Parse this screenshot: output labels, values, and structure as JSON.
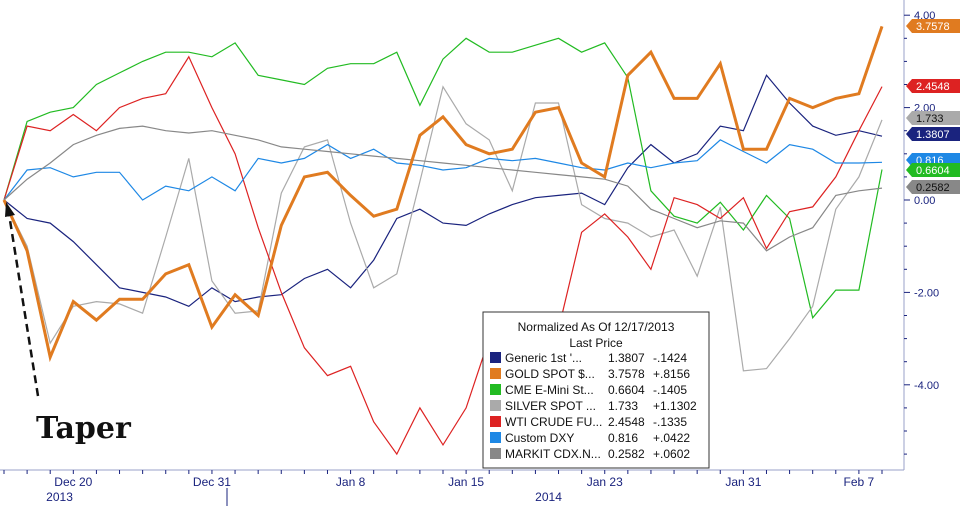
{
  "chart_data": {
    "type": "line",
    "ylim": [
      -5.6,
      4.0
    ],
    "y_ticks": [
      {
        "value": 4.0,
        "label": "4.00"
      },
      {
        "value": 2.0,
        "label": "2.00"
      },
      {
        "value": 0.0,
        "label": "0.00"
      },
      {
        "value": -2.0,
        "label": "-2.00"
      },
      {
        "value": -4.0,
        "label": "-4.00"
      }
    ],
    "x_ticks": [
      {
        "index": 3,
        "label": "Dec 20"
      },
      {
        "index": 9,
        "label": "Dec 31"
      },
      {
        "index": 15,
        "label": "Jan 8"
      },
      {
        "index": 20,
        "label": "Jan 15"
      },
      {
        "index": 26,
        "label": "Jan 23"
      },
      {
        "index": 32,
        "label": "Jan 31"
      },
      {
        "index": 37,
        "label": "Feb 7"
      }
    ],
    "year_labels": [
      {
        "index": 5,
        "label": "2013"
      },
      {
        "index": 24,
        "label": "2014"
      }
    ],
    "grid": false,
    "series": [
      {
        "name": "Generic 1st '...",
        "color": "#1a237e",
        "width": 1.2,
        "values": [
          0.0,
          -0.4,
          -0.5,
          -0.9,
          -1.4,
          -1.9,
          -2.0,
          -2.1,
          -2.3,
          -1.9,
          -2.2,
          -2.1,
          -2.05,
          -1.7,
          -1.5,
          -1.9,
          -1.3,
          -0.4,
          -0.2,
          -0.5,
          -0.55,
          -0.3,
          -0.1,
          0.05,
          0.1,
          0.15,
          -0.1,
          0.7,
          1.2,
          0.8,
          1.0,
          1.6,
          1.5,
          2.7,
          2.1,
          1.6,
          1.4,
          1.5,
          1.3807
        ]
      },
      {
        "name": "GOLD SPOT $...",
        "color": "#e07b20",
        "width": 3,
        "values": [
          0.0,
          -1.1,
          -3.4,
          -2.2,
          -2.6,
          -2.15,
          -2.15,
          -1.6,
          -1.4,
          -2.75,
          -2.05,
          -2.5,
          -0.55,
          0.5,
          0.6,
          0.1,
          -0.35,
          -0.2,
          1.4,
          1.8,
          1.2,
          1.0,
          1.1,
          1.9,
          2.0,
          0.8,
          0.5,
          2.7,
          3.2,
          2.2,
          2.2,
          2.95,
          1.1,
          1.1,
          2.2,
          2.0,
          2.2,
          2.3,
          3.7578
        ]
      },
      {
        "name": "CME E-Mini St...",
        "color": "#22bb22",
        "width": 1.2,
        "values": [
          0.0,
          1.7,
          1.9,
          2.0,
          2.5,
          2.75,
          3.0,
          3.2,
          3.2,
          3.1,
          3.4,
          2.7,
          2.6,
          2.5,
          2.85,
          2.95,
          2.95,
          3.2,
          2.05,
          3.05,
          3.5,
          3.2,
          3.2,
          3.35,
          3.5,
          3.2,
          3.4,
          2.65,
          0.2,
          -0.35,
          -0.5,
          -0.05,
          -0.65,
          0.1,
          -0.4,
          -2.55,
          -1.95,
          -1.95,
          0.6604
        ]
      },
      {
        "name": "SILVER SPOT ...",
        "color": "#aaaaaa",
        "width": 1.2,
        "values": [
          0.0,
          -1.0,
          -3.1,
          -2.3,
          -2.2,
          -2.25,
          -2.45,
          -0.8,
          0.9,
          -1.75,
          -2.45,
          -2.4,
          0.15,
          1.15,
          1.3,
          -0.5,
          -1.9,
          -1.6,
          0.4,
          2.45,
          1.65,
          1.3,
          0.2,
          2.1,
          2.1,
          -0.1,
          -0.4,
          -0.5,
          -0.8,
          -0.65,
          -1.65,
          -0.15,
          -3.7,
          -3.65,
          -3.0,
          -2.3,
          -0.2,
          0.5,
          1.733
        ]
      },
      {
        "name": "WTI CRUDE FU...",
        "color": "#dd2222",
        "width": 1.2,
        "values": [
          0.0,
          1.6,
          1.5,
          1.85,
          1.5,
          2.0,
          2.2,
          2.3,
          3.1,
          2.0,
          1.0,
          -0.6,
          -2.0,
          -3.2,
          -3.8,
          -3.6,
          -4.8,
          -5.5,
          -4.5,
          -5.3,
          -4.5,
          -3.0,
          -3.7,
          -3.3,
          -2.8,
          -0.7,
          -0.3,
          -0.8,
          -1.5,
          0.05,
          -0.1,
          -0.4,
          0.05,
          -1.05,
          -0.25,
          -0.15,
          0.5,
          1.5,
          2.4548
        ]
      },
      {
        "name": "Custom DXY",
        "color": "#1e88e5",
        "width": 1.2,
        "values": [
          0.0,
          0.65,
          0.7,
          0.5,
          0.6,
          0.6,
          0.0,
          0.3,
          0.2,
          0.5,
          0.2,
          0.9,
          0.8,
          0.9,
          1.2,
          0.9,
          1.1,
          0.8,
          0.75,
          0.65,
          0.7,
          0.9,
          0.85,
          0.9,
          0.8,
          0.7,
          0.65,
          0.8,
          0.7,
          0.8,
          0.85,
          1.3,
          1.05,
          0.8,
          1.2,
          1.1,
          0.8,
          0.8,
          0.816
        ]
      },
      {
        "name": "MARKIT CDX.N...",
        "color": "#888888",
        "width": 1.2,
        "values": [
          0.0,
          0.45,
          0.8,
          1.2,
          1.4,
          1.55,
          1.6,
          1.5,
          1.45,
          1.5,
          1.4,
          1.3,
          1.15,
          1.1,
          1.05,
          1.0,
          0.95,
          0.9,
          0.85,
          0.8,
          0.75,
          0.7,
          0.65,
          0.6,
          0.55,
          0.5,
          0.45,
          0.3,
          -0.2,
          -0.4,
          -0.6,
          -0.45,
          -0.5,
          -1.1,
          -0.8,
          -0.6,
          0.1,
          0.2,
          0.2582
        ]
      }
    ],
    "legend": {
      "title_line1": "Normalized As Of 12/17/2013",
      "title_line2": "Last Price",
      "position": "bottom-center",
      "rows": [
        {
          "name": "Generic 1st '...",
          "color": "#1a237e",
          "value": "1.3807",
          "change": "-.1424"
        },
        {
          "name": "GOLD SPOT $...",
          "color": "#e07b20",
          "value": "3.7578",
          "change": "+.8156"
        },
        {
          "name": "CME E-Mini St...",
          "color": "#22bb22",
          "value": "0.6604",
          "change": "-.1405"
        },
        {
          "name": "SILVER SPOT ...",
          "color": "#aaaaaa",
          "value": "1.733",
          "change": "+1.1302"
        },
        {
          "name": "WTI CRUDE FU...",
          "color": "#dd2222",
          "value": "2.4548",
          "change": "-.1335"
        },
        {
          "name": "Custom DXY",
          "color": "#1e88e5",
          "value": "0.816",
          "change": "+.0422"
        },
        {
          "name": "MARKIT CDX.N...",
          "color": "#888888",
          "value": "0.2582",
          "change": "+.0602"
        }
      ]
    },
    "last_value_tags": [
      {
        "label": "3.7578",
        "value": 3.7578,
        "bg": "#e07b20",
        "fg": "#ffffff"
      },
      {
        "label": "2.4548",
        "value": 2.4548,
        "bg": "#dd2222",
        "fg": "#ffffff"
      },
      {
        "label": "1.733",
        "value": 1.733,
        "bg": "#aaaaaa",
        "fg": "#111111"
      },
      {
        "label": "1.3807",
        "value": 1.3807,
        "bg": "#1a237e",
        "fg": "#ffffff"
      },
      {
        "label": "0.816",
        "value": 0.816,
        "bg": "#1e88e5",
        "fg": "#ffffff"
      },
      {
        "label": "0.6604",
        "value": 0.6604,
        "bg": "#22bb22",
        "fg": "#ffffff"
      },
      {
        "label": "0.2582",
        "value": 0.2582,
        "bg": "#888888",
        "fg": "#111111"
      }
    ],
    "annotations": [
      {
        "text": "Taper",
        "index": 0,
        "value": 0.0
      }
    ]
  }
}
